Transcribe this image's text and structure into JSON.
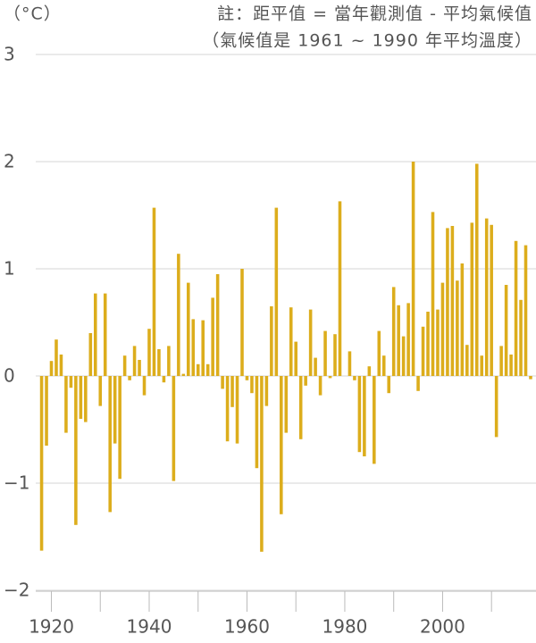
{
  "chart_data": {
    "type": "bar",
    "unit_label": "（°C）",
    "notes": [
      "註：距平值 = 當年觀測值 - 平均氣候值",
      "（氣候值是 1961 ~ 1990 年平均溫度）"
    ],
    "x": [
      1918,
      1919,
      1920,
      1921,
      1922,
      1923,
      1924,
      1925,
      1926,
      1927,
      1928,
      1929,
      1930,
      1931,
      1932,
      1933,
      1934,
      1935,
      1936,
      1937,
      1938,
      1939,
      1940,
      1941,
      1942,
      1943,
      1944,
      1945,
      1946,
      1947,
      1948,
      1949,
      1950,
      1951,
      1952,
      1953,
      1954,
      1955,
      1956,
      1957,
      1958,
      1959,
      1960,
      1961,
      1962,
      1963,
      1964,
      1965,
      1966,
      1967,
      1968,
      1969,
      1970,
      1971,
      1972,
      1973,
      1974,
      1975,
      1976,
      1977,
      1978,
      1979,
      1980,
      1981,
      1982,
      1983,
      1984,
      1985,
      1986,
      1987,
      1988,
      1989,
      1990,
      1991,
      1992,
      1993,
      1994,
      1995,
      1996,
      1997,
      1998,
      1999,
      2000,
      2001,
      2002,
      2003,
      2004,
      2005,
      2006,
      2007,
      2008,
      2009,
      2010,
      2011,
      2012,
      2013,
      2014,
      2015,
      2016,
      2017,
      2018
    ],
    "values": [
      -1.63,
      -0.65,
      0.14,
      0.34,
      0.2,
      -0.53,
      -0.11,
      -1.39,
      -0.4,
      -0.43,
      0.4,
      0.77,
      -0.28,
      0.77,
      -1.27,
      -0.63,
      -0.96,
      0.19,
      -0.04,
      0.28,
      0.15,
      -0.18,
      0.44,
      1.57,
      0.25,
      -0.06,
      0.28,
      -0.98,
      1.14,
      0.02,
      0.87,
      0.53,
      0.11,
      0.52,
      0.11,
      0.73,
      0.95,
      -0.12,
      -0.61,
      -0.29,
      -0.63,
      1.0,
      -0.04,
      -0.16,
      -0.86,
      -1.64,
      -0.28,
      0.65,
      1.57,
      -1.29,
      -0.53,
      0.64,
      0.32,
      -0.59,
      -0.09,
      0.62,
      0.17,
      -0.18,
      0.42,
      -0.02,
      0.39,
      1.63,
      0,
      0.23,
      -0.04,
      -0.71,
      -0.75,
      0.09,
      -0.82,
      0.42,
      0.19,
      -0.16,
      0.83,
      0.66,
      0.37,
      0.68,
      2.0,
      -0.14,
      0.46,
      0.6,
      1.53,
      0.62,
      0.87,
      1.38,
      1.4,
      0.89,
      1.05,
      0.29,
      1.43,
      1.98,
      0.19,
      1.47,
      1.41,
      -0.57,
      0.28,
      0.85,
      0.2,
      1.26,
      0.71,
      1.22,
      -0.03
    ],
    "color": "#dcad1c",
    "xlim": [
      1916.8,
      2019.1
    ],
    "xticks": [
      1920,
      1940,
      1960,
      1980,
      2000
    ],
    "xminorticks": [
      1930,
      1950,
      1970,
      1990,
      2010
    ],
    "ylim": [
      -2,
      3
    ],
    "yticks": [
      {
        "value": -2,
        "label": "−2"
      },
      {
        "value": -1,
        "label": "−1"
      },
      0,
      1,
      2,
      3
    ],
    "grid": true
  }
}
